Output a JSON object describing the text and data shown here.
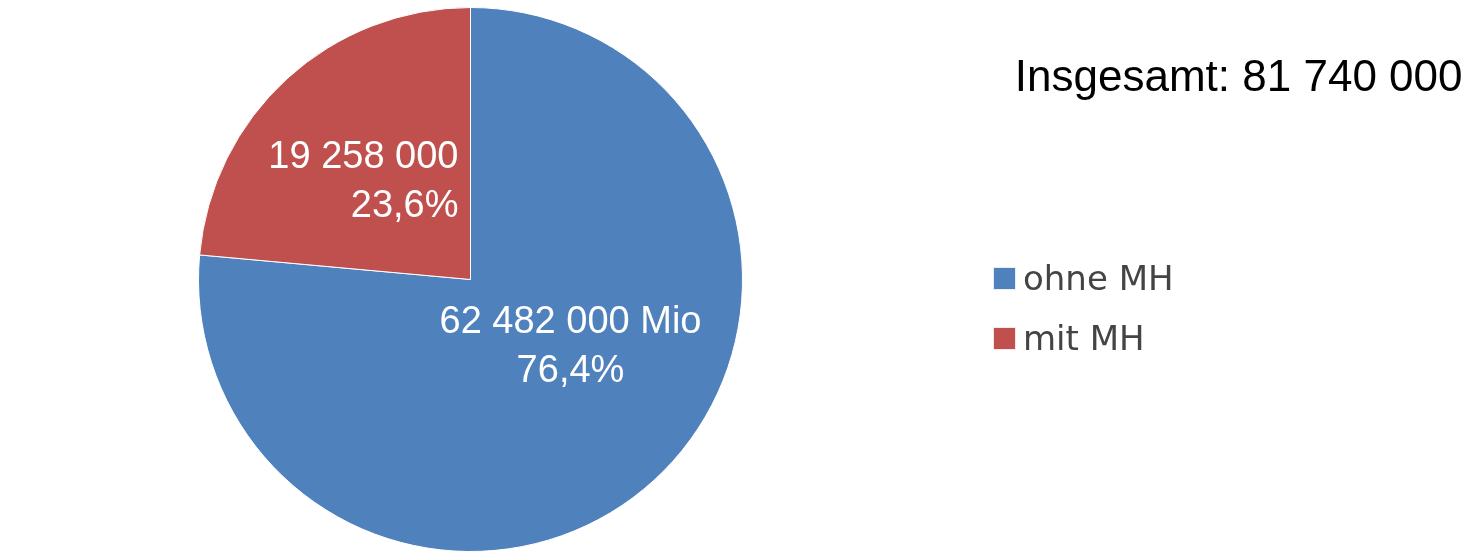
{
  "chart_data": {
    "type": "pie",
    "categories": [
      "ohne MH",
      "mit MH"
    ],
    "values": [
      62482000,
      19258000
    ],
    "colors": [
      "#4f81bd",
      "#c0504d"
    ],
    "value_labels": [
      "62 482 000 Mio\n76,4%",
      "19 258 000\n23,6%"
    ],
    "annotations": [
      "Insgesamt: 81 740 000"
    ],
    "legend": "right"
  }
}
